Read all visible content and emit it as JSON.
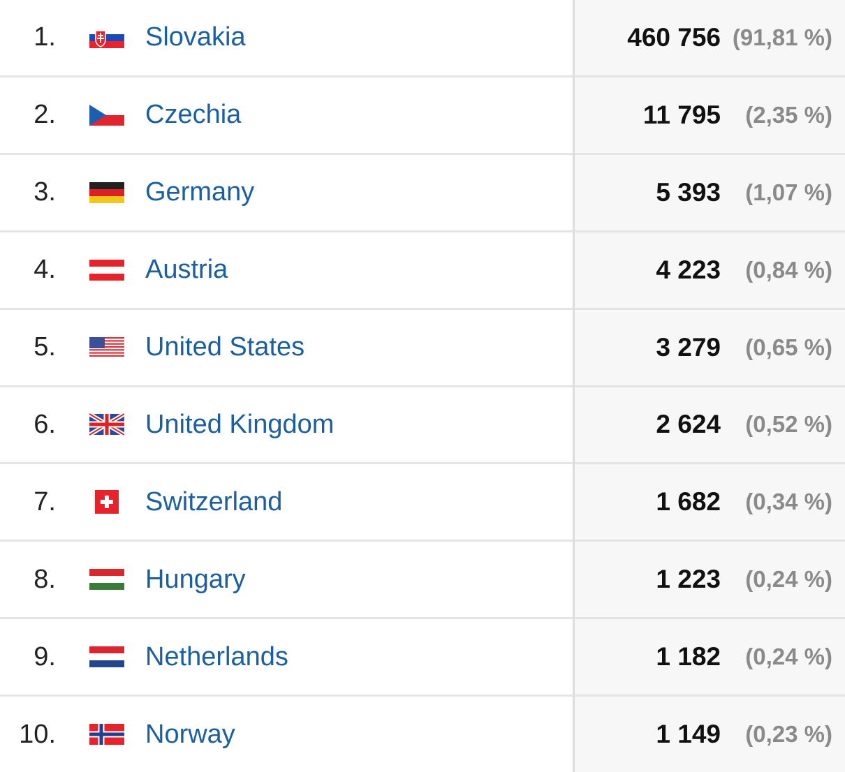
{
  "table": {
    "rows": [
      {
        "rank": "1.",
        "country": "Slovakia",
        "value": "460 756",
        "percent": "(91,81 %)"
      },
      {
        "rank": "2.",
        "country": "Czechia",
        "value": "11 795",
        "percent": "(2,35 %)"
      },
      {
        "rank": "3.",
        "country": "Germany",
        "value": "5 393",
        "percent": "(1,07 %)"
      },
      {
        "rank": "4.",
        "country": "Austria",
        "value": "4 223",
        "percent": "(0,84 %)"
      },
      {
        "rank": "5.",
        "country": "United States",
        "value": "3 279",
        "percent": "(0,65 %)"
      },
      {
        "rank": "6.",
        "country": "United Kingdom",
        "value": "2 624",
        "percent": "(0,52 %)"
      },
      {
        "rank": "7.",
        "country": "Switzerland",
        "value": "1 682",
        "percent": "(0,34 %)"
      },
      {
        "rank": "8.",
        "country": "Hungary",
        "value": "1 223",
        "percent": "(0,24 %)"
      },
      {
        "rank": "9.",
        "country": "Netherlands",
        "value": "1 182",
        "percent": "(0,24 %)"
      },
      {
        "rank": "10.",
        "country": "Norway",
        "value": "1 149",
        "percent": "(0,23 %)"
      }
    ]
  }
}
